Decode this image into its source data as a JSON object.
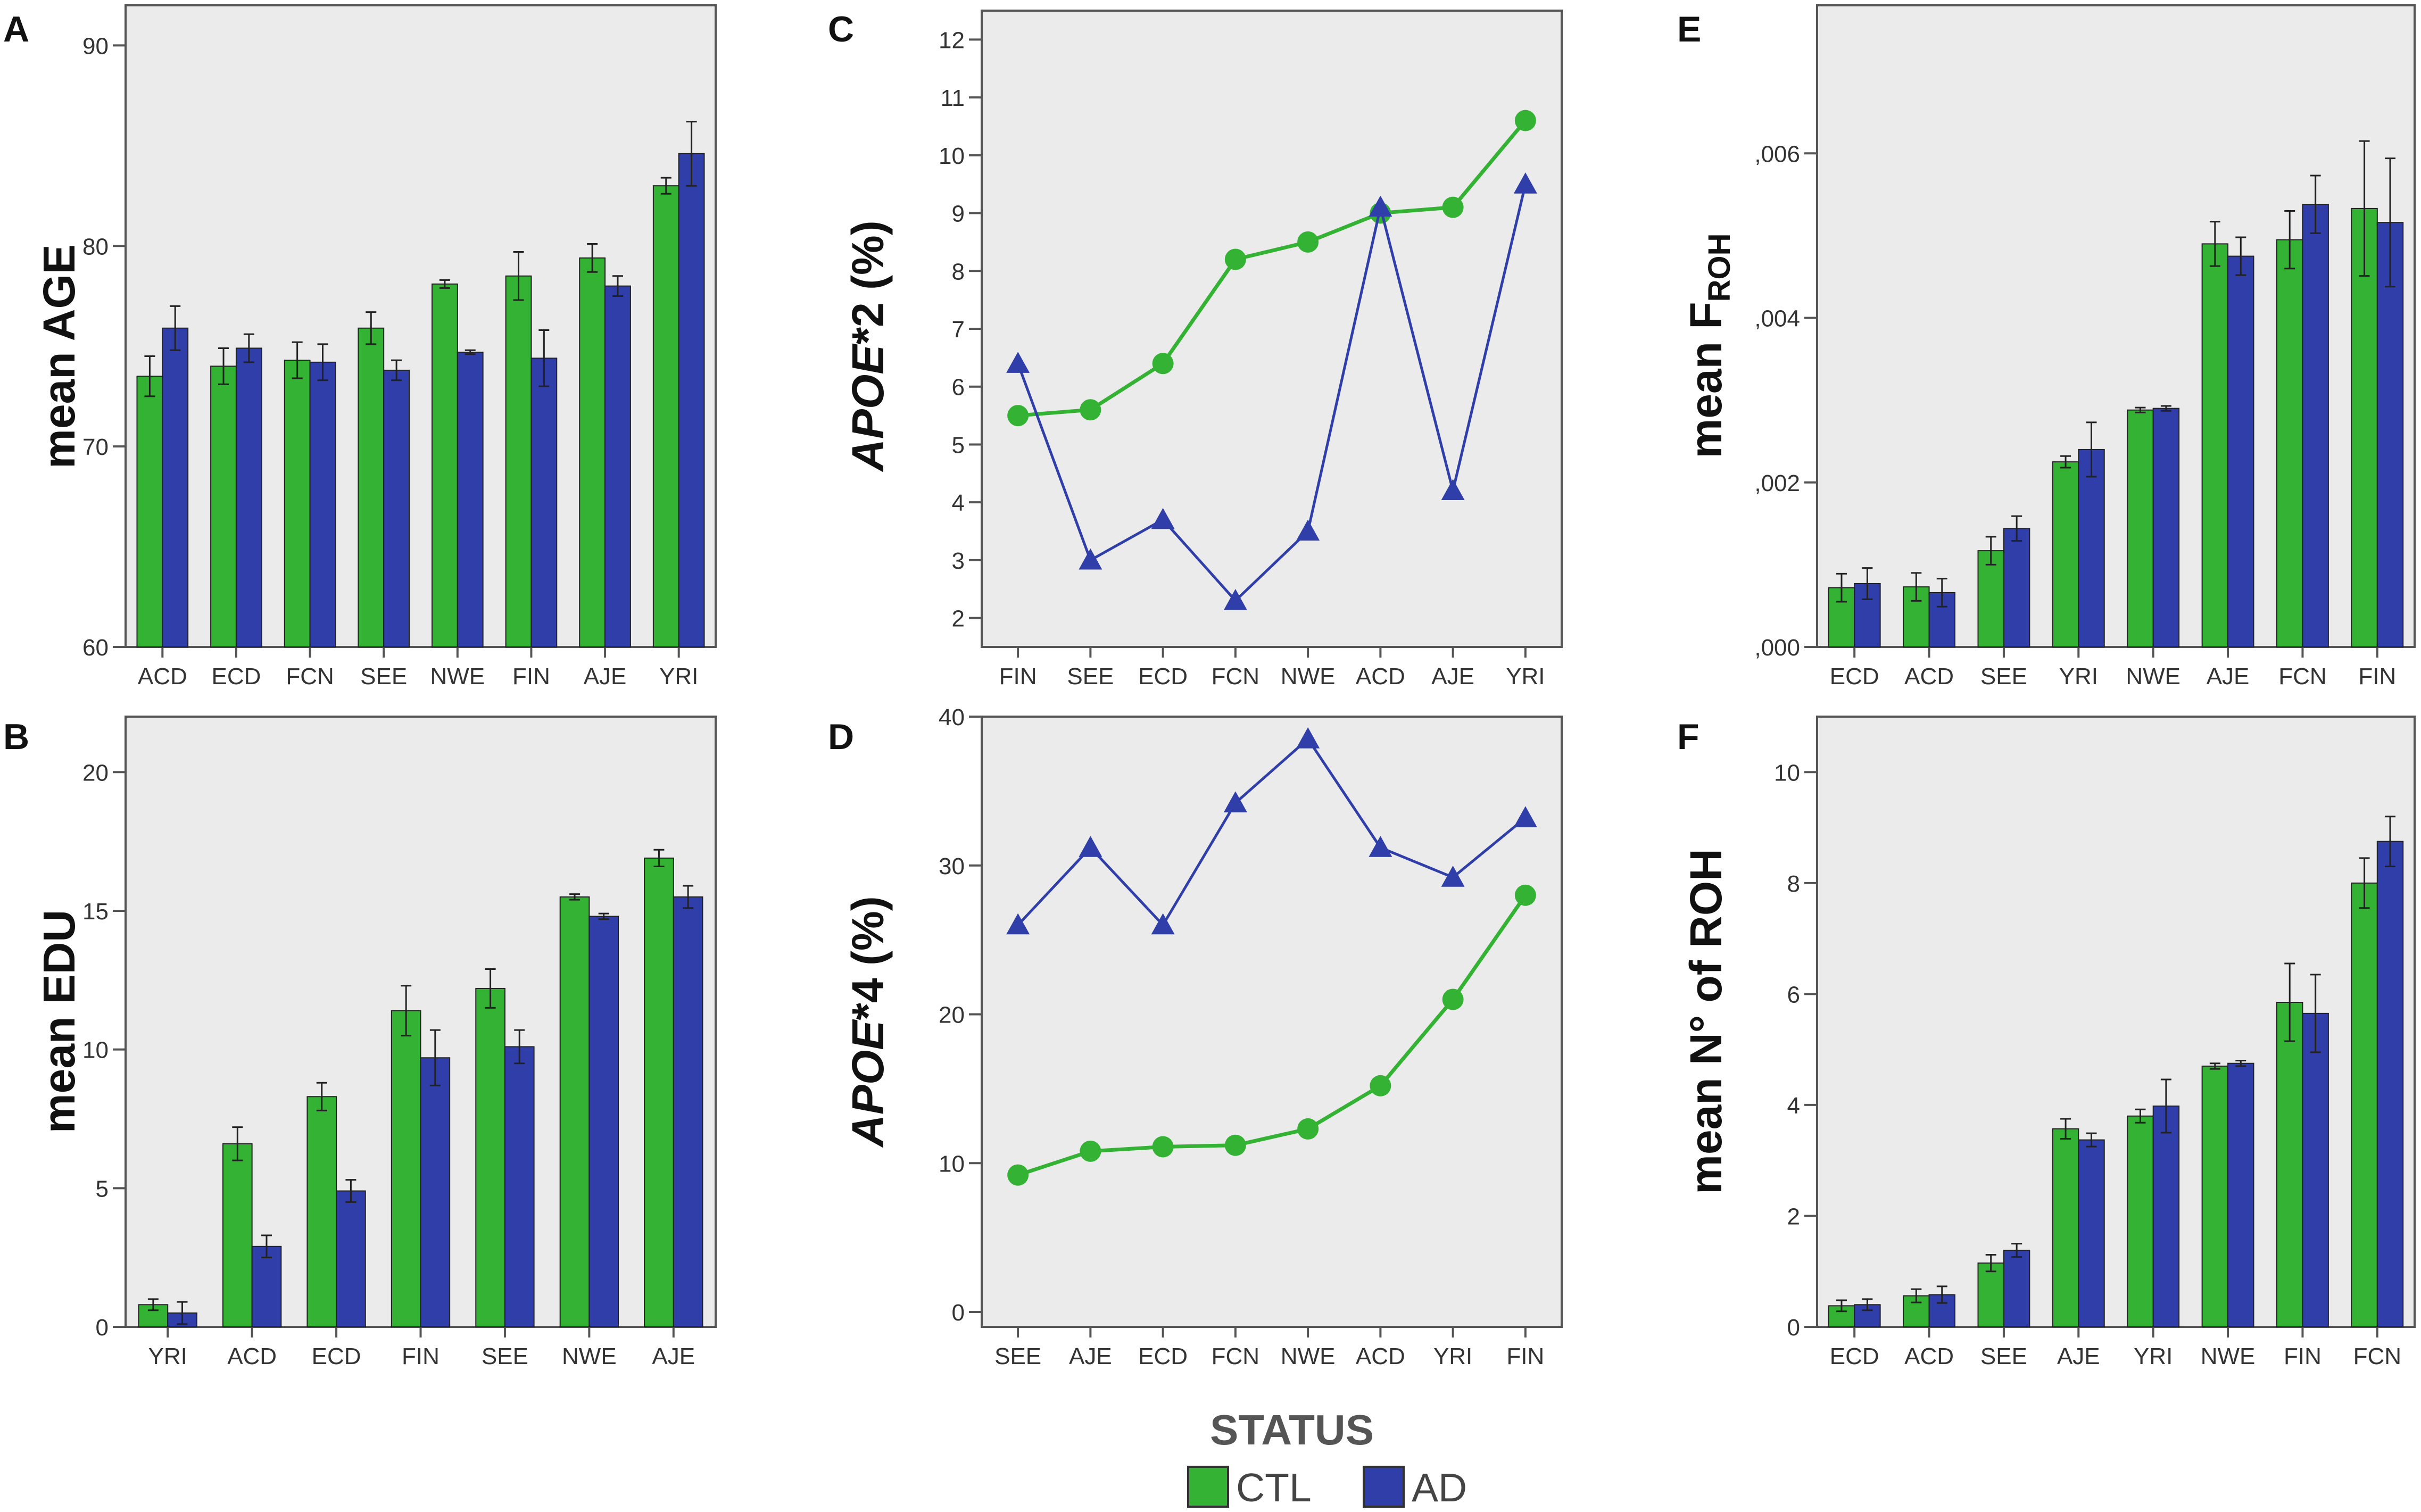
{
  "legend": {
    "title": "STATUS",
    "entries": [
      {
        "label": "CTL",
        "color": "#33b233"
      },
      {
        "label": "AD",
        "color": "#2f3ea8"
      }
    ]
  },
  "colors": {
    "ctl": "#33b233",
    "ad": "#2f3ea8",
    "plot_bg": "#ebebeb",
    "frame": "#555555"
  },
  "chart_data": [
    {
      "id": "A",
      "panel_label": "A",
      "type": "bar",
      "ylabel": "mean AGE",
      "ylim": [
        60,
        92
      ],
      "yticks": [
        60,
        70,
        80,
        90
      ],
      "ytick_labels": [
        "60",
        "70",
        "80",
        "90"
      ],
      "categories": [
        "ACD",
        "ECD",
        "FCN",
        "SEE",
        "NWE",
        "FIN",
        "AJE",
        "YRI"
      ],
      "series": [
        {
          "name": "CTL",
          "values": [
            73.5,
            74.0,
            74.3,
            75.9,
            78.1,
            78.5,
            79.4,
            83.0
          ],
          "err": [
            1.0,
            0.9,
            0.9,
            0.8,
            0.2,
            1.2,
            0.7,
            0.4
          ]
        },
        {
          "name": "AD",
          "values": [
            75.9,
            74.9,
            74.2,
            73.8,
            74.7,
            74.4,
            78.0,
            84.6
          ],
          "err": [
            1.1,
            0.7,
            0.9,
            0.5,
            0.1,
            1.4,
            0.5,
            1.6
          ]
        }
      ]
    },
    {
      "id": "B",
      "panel_label": "B",
      "type": "bar",
      "ylabel": "mean EDU",
      "ylim": [
        0,
        22
      ],
      "yticks": [
        0,
        5,
        10,
        15,
        20
      ],
      "ytick_labels": [
        "0",
        "5",
        "10",
        "15",
        "20"
      ],
      "categories": [
        "YRI",
        "ACD",
        "ECD",
        "FIN",
        "SEE",
        "NWE",
        "AJE"
      ],
      "series": [
        {
          "name": "CTL",
          "values": [
            0.8,
            6.6,
            8.3,
            11.4,
            12.2,
            15.5,
            16.9
          ],
          "err": [
            0.2,
            0.6,
            0.5,
            0.9,
            0.7,
            0.1,
            0.3
          ]
        },
        {
          "name": "AD",
          "values": [
            0.5,
            2.9,
            4.9,
            9.7,
            10.1,
            14.8,
            15.5
          ],
          "err": [
            0.4,
            0.4,
            0.4,
            1.0,
            0.6,
            0.1,
            0.4
          ]
        }
      ]
    },
    {
      "id": "C",
      "panel_label": "C",
      "type": "line",
      "ylabel_italic": "APOE",
      "ylabel_rest": "*2 (%)",
      "ylim": [
        1.5,
        12.5
      ],
      "yticks": [
        2,
        3,
        4,
        5,
        6,
        7,
        8,
        9,
        10,
        11,
        12
      ],
      "ytick_labels": [
        "2",
        "3",
        "4",
        "5",
        "6",
        "7",
        "8",
        "9",
        "10",
        "11",
        "12"
      ],
      "categories": [
        "FIN",
        "SEE",
        "ECD",
        "FCN",
        "NWE",
        "ACD",
        "AJE",
        "YRI"
      ],
      "series": [
        {
          "name": "CTL",
          "marker": "circle",
          "values": [
            5.5,
            5.6,
            6.4,
            8.2,
            8.5,
            9.0,
            9.1,
            10.6
          ]
        },
        {
          "name": "AD",
          "marker": "triangle",
          "values": [
            6.4,
            3.0,
            3.7,
            2.3,
            3.5,
            9.1,
            4.2,
            9.5
          ]
        }
      ]
    },
    {
      "id": "D",
      "panel_label": "D",
      "type": "line",
      "ylabel_italic": "APOE",
      "ylabel_rest": "*4 (%)",
      "ylim": [
        -1,
        40
      ],
      "yticks": [
        0,
        10,
        20,
        30,
        40
      ],
      "ytick_labels": [
        "0",
        "10",
        "20",
        "30",
        "40"
      ],
      "categories": [
        "SEE",
        "AJE",
        "ECD",
        "FCN",
        "NWE",
        "ACD",
        "YRI",
        "FIN"
      ],
      "series": [
        {
          "name": "CTL",
          "marker": "circle",
          "values": [
            9.2,
            10.8,
            11.1,
            11.2,
            12.3,
            15.2,
            21.0,
            28.0
          ]
        },
        {
          "name": "AD",
          "marker": "triangle",
          "values": [
            26.0,
            31.2,
            26.0,
            34.2,
            38.5,
            31.2,
            29.2,
            33.2
          ]
        }
      ]
    },
    {
      "id": "E",
      "panel_label": "E",
      "type": "bar",
      "ylabel": "mean F",
      "ylabel_sub": "ROH",
      "ylim": [
        0,
        0.0078
      ],
      "yticks": [
        0,
        0.002,
        0.004,
        0.006
      ],
      "ytick_labels": [
        ",000",
        ",002",
        ",004",
        ",006"
      ],
      "categories": [
        "ECD",
        "ACD",
        "SEE",
        "YRI",
        "NWE",
        "AJE",
        "FCN",
        "FIN"
      ],
      "series": [
        {
          "name": "CTL",
          "values": [
            0.00072,
            0.00073,
            0.00117,
            0.00225,
            0.00288,
            0.0049,
            0.00495,
            0.00533
          ],
          "err": [
            0.00017,
            0.00017,
            0.00017,
            7e-05,
            3e-05,
            0.00027,
            0.00035,
            0.00082
          ]
        },
        {
          "name": "AD",
          "values": [
            0.00077,
            0.00066,
            0.00144,
            0.0024,
            0.0029,
            0.00475,
            0.00538,
            0.00516
          ],
          "err": [
            0.00019,
            0.00017,
            0.00015,
            0.00033,
            3e-05,
            0.00023,
            0.00035,
            0.00078
          ]
        }
      ]
    },
    {
      "id": "F",
      "panel_label": "F",
      "type": "bar",
      "ylabel": "mean N° of ROH",
      "ylim": [
        0,
        11
      ],
      "yticks": [
        0,
        2,
        4,
        6,
        8,
        10
      ],
      "ytick_labels": [
        "0",
        "2",
        "4",
        "6",
        "8",
        "10"
      ],
      "categories": [
        "ECD",
        "ACD",
        "SEE",
        "AJE",
        "YRI",
        "NWE",
        "FIN",
        "FCN"
      ],
      "series": [
        {
          "name": "CTL",
          "values": [
            0.38,
            0.56,
            1.15,
            3.57,
            3.8,
            4.7,
            5.85,
            8.0
          ],
          "err": [
            0.1,
            0.12,
            0.15,
            0.18,
            0.12,
            0.05,
            0.7,
            0.45
          ]
        },
        {
          "name": "AD",
          "values": [
            0.4,
            0.58,
            1.38,
            3.37,
            3.98,
            4.75,
            5.65,
            8.75
          ],
          "err": [
            0.1,
            0.15,
            0.12,
            0.12,
            0.48,
            0.05,
            0.7,
            0.45
          ]
        }
      ]
    }
  ]
}
